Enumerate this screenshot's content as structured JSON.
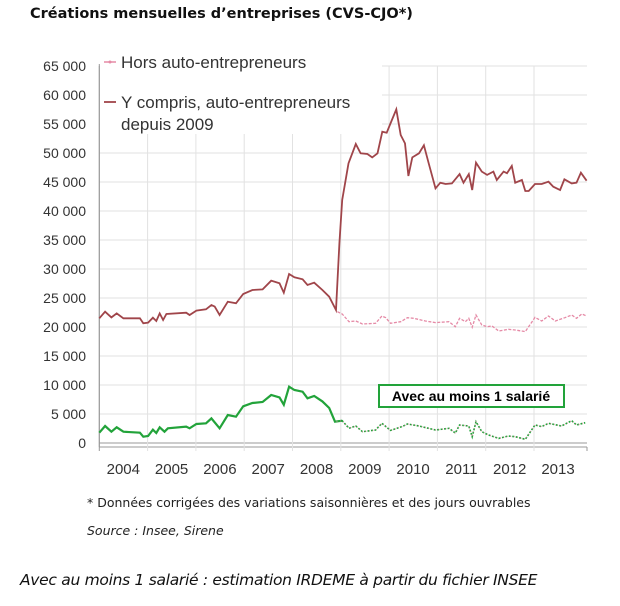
{
  "chart_data": {
    "type": "line",
    "title": "Créations mensuelles d’entreprises (CVS-CJO*)",
    "xlabel": "",
    "ylabel": "",
    "ylim": [
      0,
      65000
    ],
    "xlim": [
      2004,
      2014.1
    ],
    "grid": true,
    "legend_position": "top-left",
    "y_ticks": [
      "0",
      "5 000",
      "10 000",
      "15 000",
      "20 000",
      "25 000",
      "30 000",
      "35 000",
      "40 000",
      "45 000",
      "50 000",
      "55 000",
      "60 000",
      "65 000"
    ],
    "x_ticks": [
      "2004",
      "2005",
      "2006",
      "2007",
      "2008",
      "2009",
      "2010",
      "2011",
      "2012",
      "2013"
    ],
    "annotation": "Avec au moins 1 salarié",
    "series": [
      {
        "name": "Y compris, auto-entrepreneurs depuis 2009",
        "color": "#a0454a",
        "x": [
          2004.0,
          2004.12,
          2004.25,
          2004.36,
          2004.5,
          2004.84,
          2004.91,
          2005.01,
          2005.11,
          2005.18,
          2005.25,
          2005.32,
          2005.39,
          2005.8,
          2005.87,
          2006.01,
          2006.21,
          2006.32,
          2006.39,
          2006.49,
          2006.66,
          2006.83,
          2006.98,
          2007.17,
          2007.38,
          2007.56,
          2007.73,
          2007.82,
          2007.93,
          2008.04,
          2008.21,
          2008.31,
          2008.45,
          2008.62,
          2008.76,
          2008.9,
          2008.97,
          2009.03,
          2009.16,
          2009.31,
          2009.41,
          2009.55,
          2009.65,
          2009.76,
          2009.86,
          2009.95,
          2010.03,
          2010.15,
          2010.24,
          2010.33,
          2010.4,
          2010.48,
          2010.62,
          2010.72,
          2010.82,
          2010.96,
          2011.06,
          2011.17,
          2011.3,
          2011.46,
          2011.54,
          2011.65,
          2011.72,
          2011.8,
          2011.92,
          2012.03,
          2012.16,
          2012.23,
          2012.37,
          2012.44,
          2012.54,
          2012.61,
          2012.75,
          2012.82,
          2012.89,
          2013.02,
          2013.16,
          2013.3,
          2013.4,
          2013.54,
          2013.63,
          2013.78,
          2013.88,
          2013.97,
          2014.09
        ],
        "values": [
          21500,
          22640,
          21660,
          22350,
          21500,
          21500,
          20630,
          20750,
          21610,
          21030,
          22350,
          21200,
          22240,
          22470,
          22070,
          22820,
          23050,
          23790,
          23510,
          22070,
          24370,
          24080,
          25690,
          26380,
          26490,
          27990,
          27530,
          25920,
          29140,
          28570,
          28220,
          27250,
          27640,
          26380,
          25230,
          22930,
          34430,
          41890,
          48220,
          51550,
          49940,
          49830,
          49250,
          49940,
          53670,
          53500,
          55110,
          57520,
          53100,
          51660,
          46030,
          49250,
          49940,
          51320,
          48220,
          43900,
          44880,
          44650,
          44760,
          46370,
          44880,
          46370,
          43620,
          48340,
          46790,
          46220,
          46790,
          45350,
          46790,
          46510,
          47770,
          44880,
          45350,
          43450,
          43450,
          44650,
          44650,
          45060,
          44190,
          43620,
          45460,
          44760,
          44880,
          46600,
          45230
        ]
      },
      {
        "name": "Hors auto-entrepreneurs",
        "color": "#e58aa6",
        "x": [
          2008.93,
          2009.03,
          2009.17,
          2009.31,
          2009.45,
          2009.72,
          2009.85,
          2009.93,
          2010.03,
          2010.24,
          2010.38,
          2010.51,
          2010.75,
          2010.96,
          2011.24,
          2011.37,
          2011.46,
          2011.58,
          2011.65,
          2011.72,
          2011.8,
          2011.92,
          2012.03,
          2012.13,
          2012.27,
          2012.47,
          2012.61,
          2012.82,
          2013.02,
          2013.16,
          2013.3,
          2013.44,
          2013.64,
          2013.78,
          2013.88,
          2013.99,
          2014.09
        ],
        "values": [
          22640,
          22240,
          20920,
          21030,
          20520,
          20630,
          21890,
          21610,
          20630,
          20920,
          21610,
          21500,
          21030,
          20750,
          20920,
          20060,
          21500,
          20920,
          21500,
          19940,
          22070,
          20340,
          20060,
          20170,
          19310,
          19600,
          19480,
          19200,
          21660,
          21030,
          21890,
          21030,
          21610,
          22070,
          21500,
          22240,
          21890
        ]
      },
      {
        "name": "Avec au moins 1 salarié",
        "color": "#22a33a",
        "x": [
          2004.0,
          2004.12,
          2004.25,
          2004.36,
          2004.5,
          2004.84,
          2004.91,
          2005.01,
          2005.11,
          2005.18,
          2005.25,
          2005.35,
          2005.42,
          2005.8,
          2005.87,
          2006.01,
          2006.21,
          2006.32,
          2006.49,
          2006.66,
          2006.83,
          2006.98,
          2007.17,
          2007.38,
          2007.56,
          2007.73,
          2007.82,
          2007.93,
          2008.04,
          2008.21,
          2008.31,
          2008.45,
          2008.62,
          2008.76,
          2008.88,
          2009.03,
          2009.17,
          2009.31,
          2009.45,
          2009.72,
          2009.85,
          2010.03,
          2010.27,
          2010.38,
          2010.62,
          2010.96,
          2011.24,
          2011.37,
          2011.46,
          2011.65,
          2011.72,
          2011.8,
          2011.92,
          2012.06,
          2012.27,
          2012.47,
          2012.61,
          2012.82,
          2013.02,
          2013.16,
          2013.3,
          2013.57,
          2013.78,
          2013.88,
          2014.06
        ],
        "values": [
          1780,
          2930,
          1950,
          2700,
          1950,
          1780,
          1090,
          1210,
          2290,
          1720,
          2700,
          1950,
          2530,
          2820,
          2530,
          3270,
          3390,
          4250,
          2530,
          4830,
          4540,
          6320,
          6900,
          7070,
          8280,
          7870,
          6610,
          9710,
          9140,
          8850,
          7700,
          8100,
          7180,
          6030,
          3680,
          3850,
          2530,
          2930,
          1950,
          2240,
          3390,
          2180,
          2820,
          3270,
          2930,
          2240,
          2530,
          1720,
          3100,
          2930,
          1090,
          3680,
          1950,
          1380,
          800,
          1210,
          1090,
          630,
          3100,
          2820,
          3390,
          2930,
          3850,
          3100,
          3500
        ]
      }
    ]
  },
  "legend": {
    "hors": "Hors auto-entrepreneurs",
    "ycompris_line1": "Y compris, auto-entrepreneurs",
    "ycompris_line2": "depuis 2009"
  },
  "footnote": "* Données corrigées des variations saisonnières et des jours ouvrables",
  "source": "Source : Insee, Sirene",
  "caption": "Avec au moins 1 salarié : estimation IRDEME à partir du fichier INSEE"
}
